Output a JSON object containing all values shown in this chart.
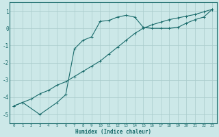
{
  "xlabel": "Humidex (Indice chaleur)",
  "background_color": "#cce8e8",
  "grid_color": "#aacccc",
  "line_color": "#1a6b6b",
  "xlim": [
    -0.5,
    23.5
  ],
  "ylim": [
    -5.5,
    1.5
  ],
  "yticks": [
    1,
    0,
    -1,
    -2,
    -3,
    -4,
    -5
  ],
  "xticks": [
    0,
    1,
    2,
    3,
    4,
    5,
    6,
    7,
    8,
    9,
    10,
    11,
    12,
    13,
    14,
    15,
    16,
    17,
    18,
    19,
    20,
    21,
    22,
    23
  ],
  "line1_x": [
    0,
    1,
    2,
    3,
    4,
    5,
    6,
    7,
    8,
    9,
    10,
    11,
    12,
    13,
    14,
    15,
    16,
    17,
    18,
    19,
    20,
    21,
    22,
    23
  ],
  "line1_y": [
    -4.5,
    -4.3,
    -4.1,
    -3.8,
    -3.6,
    -3.3,
    -3.1,
    -2.8,
    -2.5,
    -2.2,
    -1.9,
    -1.5,
    -1.1,
    -0.7,
    -0.3,
    0.0,
    0.2,
    0.35,
    0.5,
    0.6,
    0.7,
    0.8,
    0.95,
    1.1
  ],
  "line2_x": [
    0,
    1,
    3,
    5,
    6,
    7,
    8,
    9,
    10,
    11,
    12,
    13,
    14,
    15,
    16,
    17,
    18,
    19,
    20,
    21,
    22,
    23
  ],
  "line2_y": [
    -4.5,
    -4.3,
    -5.0,
    -4.3,
    -3.85,
    -1.2,
    -0.7,
    -0.5,
    0.4,
    0.45,
    0.65,
    0.75,
    0.65,
    0.05,
    0.0,
    0.0,
    0.0,
    0.05,
    0.3,
    0.5,
    0.65,
    1.1
  ]
}
